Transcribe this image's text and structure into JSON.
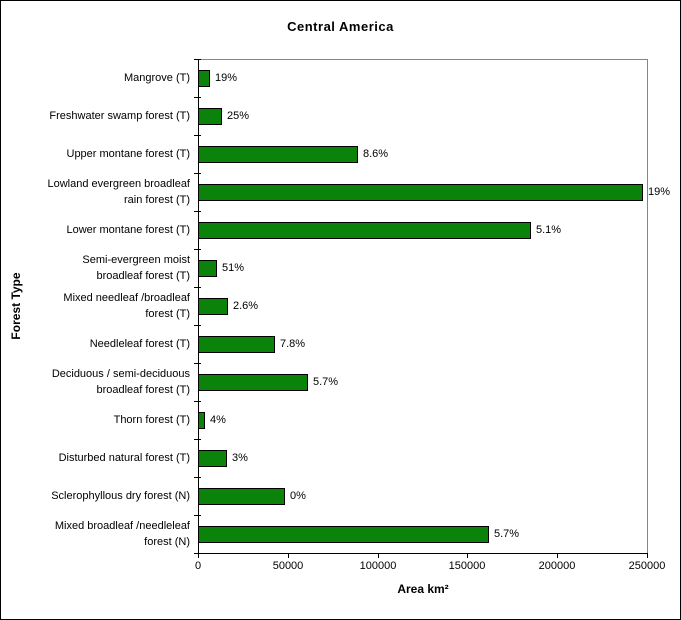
{
  "window": {
    "background_color": "#ffffff",
    "frame_border_color": "#000000",
    "plot_border_gray": "#848484"
  },
  "chart_data": {
    "type": "bar",
    "orientation": "horizontal",
    "title": "Central America",
    "xlabel": "Area km²",
    "ylabel": "Forest Type",
    "xlim": [
      0,
      250000
    ],
    "x_ticks": [
      "0",
      "50000",
      "100000",
      "150000",
      "200000",
      "250000"
    ],
    "grid": false,
    "legend": "none",
    "bar_color": "#0B830B",
    "bar_border_color": "#000000",
    "categories": [
      [
        "Mangrove (T)"
      ],
      [
        "Freshwater swamp forest (T)"
      ],
      [
        "Upper montane forest (T)"
      ],
      [
        "Lowland evergreen broadleaf",
        "rain forest (T)"
      ],
      [
        "Lower montane forest (T)"
      ],
      [
        "Semi-evergreen moist",
        "broadleaf forest (T)"
      ],
      [
        "Mixed needleaf /broadleaf",
        "forest (T)"
      ],
      [
        "Needleleaf forest (T)"
      ],
      [
        "Deciduous / semi-deciduous",
        "broadleaf forest (T)"
      ],
      [
        "Thorn forest (T)"
      ],
      [
        "Disturbed natural forest (T)"
      ],
      [
        "Sclerophyllous dry forest (N)"
      ],
      [
        "Mixed broadleaf /needleleaf",
        "forest (N)"
      ]
    ],
    "values": [
      6500,
      13300,
      89000,
      248000,
      185500,
      10500,
      16800,
      43000,
      61500,
      3900,
      16000,
      48300,
      162000
    ],
    "data_labels": [
      "19%",
      "25%",
      "8.6%",
      "19%",
      "5.1%",
      "51%",
      "2.6%",
      "7.8%",
      "5.7%",
      "4%",
      "3%",
      "0%",
      "5.7%"
    ]
  }
}
